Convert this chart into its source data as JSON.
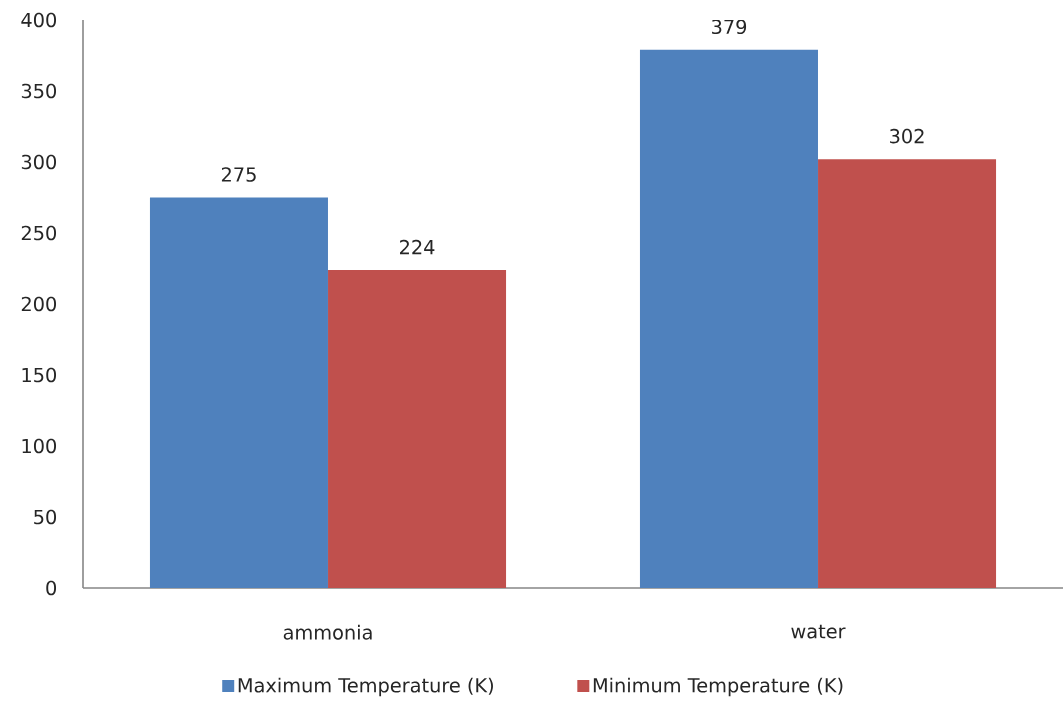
{
  "chart_data": {
    "type": "bar",
    "categories": [
      "ammonia",
      "water"
    ],
    "series": [
      {
        "name": "Maximum Temperature (K)",
        "color": "#4f81bd",
        "values": [
          275,
          379
        ]
      },
      {
        "name": "Minimum Temperature (K)",
        "color": "#c0504d",
        "values": [
          224,
          302
        ]
      }
    ],
    "ylim": [
      0,
      400
    ],
    "yticks": [
      0,
      50,
      100,
      150,
      200,
      250,
      300,
      350,
      400
    ],
    "data_labels": true,
    "legend": "bottom"
  }
}
